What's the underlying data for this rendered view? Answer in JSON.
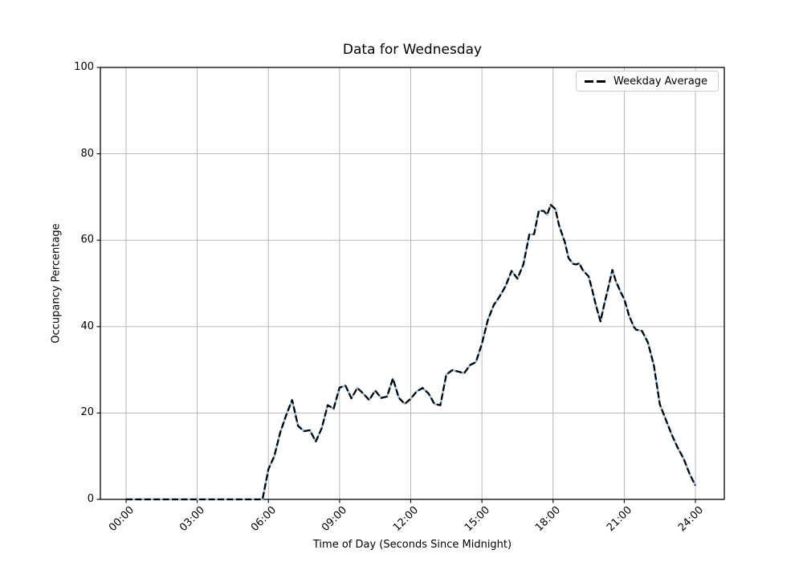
{
  "chart_data": {
    "type": "line",
    "title": "Data for Wednesday",
    "xlabel": "Time of Day (Seconds Since Midnight)",
    "ylabel": "Occupancy Percentage",
    "ylim": [
      0,
      100
    ],
    "xlim_hours": [
      0,
      24
    ],
    "grid": true,
    "grid_color": "#b0b0b0",
    "axis_color": "#000000",
    "x_ticks": [
      {
        "hour": 0,
        "label": "00:00"
      },
      {
        "hour": 3,
        "label": "03:00"
      },
      {
        "hour": 6,
        "label": "06:00"
      },
      {
        "hour": 9,
        "label": "09:00"
      },
      {
        "hour": 12,
        "label": "12:00"
      },
      {
        "hour": 15,
        "label": "15:00"
      },
      {
        "hour": 18,
        "label": "18:00"
      },
      {
        "hour": 21,
        "label": "21:00"
      },
      {
        "hour": 24,
        "label": "24:00"
      }
    ],
    "y_ticks": [
      0,
      20,
      40,
      60,
      80,
      100
    ],
    "legend": {
      "position": "upper right",
      "entries": [
        {
          "label": "Weekday Average",
          "style": "dashed",
          "color": "#000000"
        }
      ]
    },
    "x_hours": [
      0,
      0.25,
      0.5,
      0.75,
      1,
      1.25,
      1.5,
      1.75,
      2,
      2.25,
      2.5,
      2.75,
      3,
      3.25,
      3.5,
      3.75,
      4,
      4.25,
      4.5,
      4.75,
      5,
      5.25,
      5.5,
      5.75,
      6,
      6.25,
      6.5,
      6.75,
      7,
      7.25,
      7.5,
      7.75,
      8,
      8.25,
      8.5,
      8.75,
      9,
      9.25,
      9.5,
      9.75,
      10,
      10.25,
      10.5,
      10.75,
      11,
      11.25,
      11.5,
      11.75,
      12,
      12.25,
      12.5,
      12.75,
      13,
      13.25,
      13.5,
      13.75,
      14,
      14.25,
      14.5,
      14.75,
      15,
      15.25,
      15.5,
      15.75,
      16,
      16.25,
      16.5,
      16.75,
      17,
      17.2,
      17.4,
      17.6,
      17.75,
      17.9,
      18.1,
      18.25,
      18.5,
      18.65,
      18.85,
      19,
      19.1,
      19.25,
      19.5,
      19.65,
      19.8,
      20,
      20.15,
      20.3,
      20.5,
      20.65,
      20.85,
      21,
      21.2,
      21.4,
      21.5,
      21.75,
      22,
      22.25,
      22.5,
      22.75,
      23,
      23.25,
      23.5,
      23.75,
      24
    ],
    "values": [
      0,
      0,
      0,
      0,
      0,
      0,
      0,
      0,
      0,
      0,
      0,
      0,
      0,
      0,
      0,
      0,
      0,
      0,
      0,
      0,
      0,
      0,
      0,
      0,
      7,
      10,
      15.5,
      19.5,
      23,
      17,
      15.8,
      16,
      13.4,
      16.5,
      21.8,
      21,
      25.9,
      26.3,
      23.4,
      25.8,
      24.5,
      23,
      25.2,
      23.5,
      23.8,
      28,
      23.5,
      22.1,
      23.3,
      25,
      25.8,
      24.5,
      22.1,
      21.8,
      28.9,
      29.9,
      29.6,
      29.2,
      31.1,
      31.8,
      36,
      41.5,
      45,
      47,
      49.4,
      52.9,
      51.1,
      54.4,
      61.3,
      61.4,
      66.8,
      66.8,
      65.9,
      68.2,
      67.2,
      63.5,
      59.5,
      55.9,
      54.5,
      54.4,
      54.7,
      53.1,
      51.6,
      48.5,
      45.1,
      41.2,
      45,
      48.4,
      53.1,
      50.5,
      48,
      46.4,
      42.6,
      40,
      39.3,
      39,
      36.3,
      31,
      22,
      18.5,
      15,
      12,
      9.5,
      6,
      3.2
    ],
    "series": [
      {
        "legend_label": null,
        "style": "solid",
        "color": "#8ab8dc",
        "points": "shared x_hours/values"
      },
      {
        "legend_label": "Weekday Average",
        "style": "dashed",
        "color": "#000000",
        "points": "shared x_hours/values"
      }
    ]
  }
}
